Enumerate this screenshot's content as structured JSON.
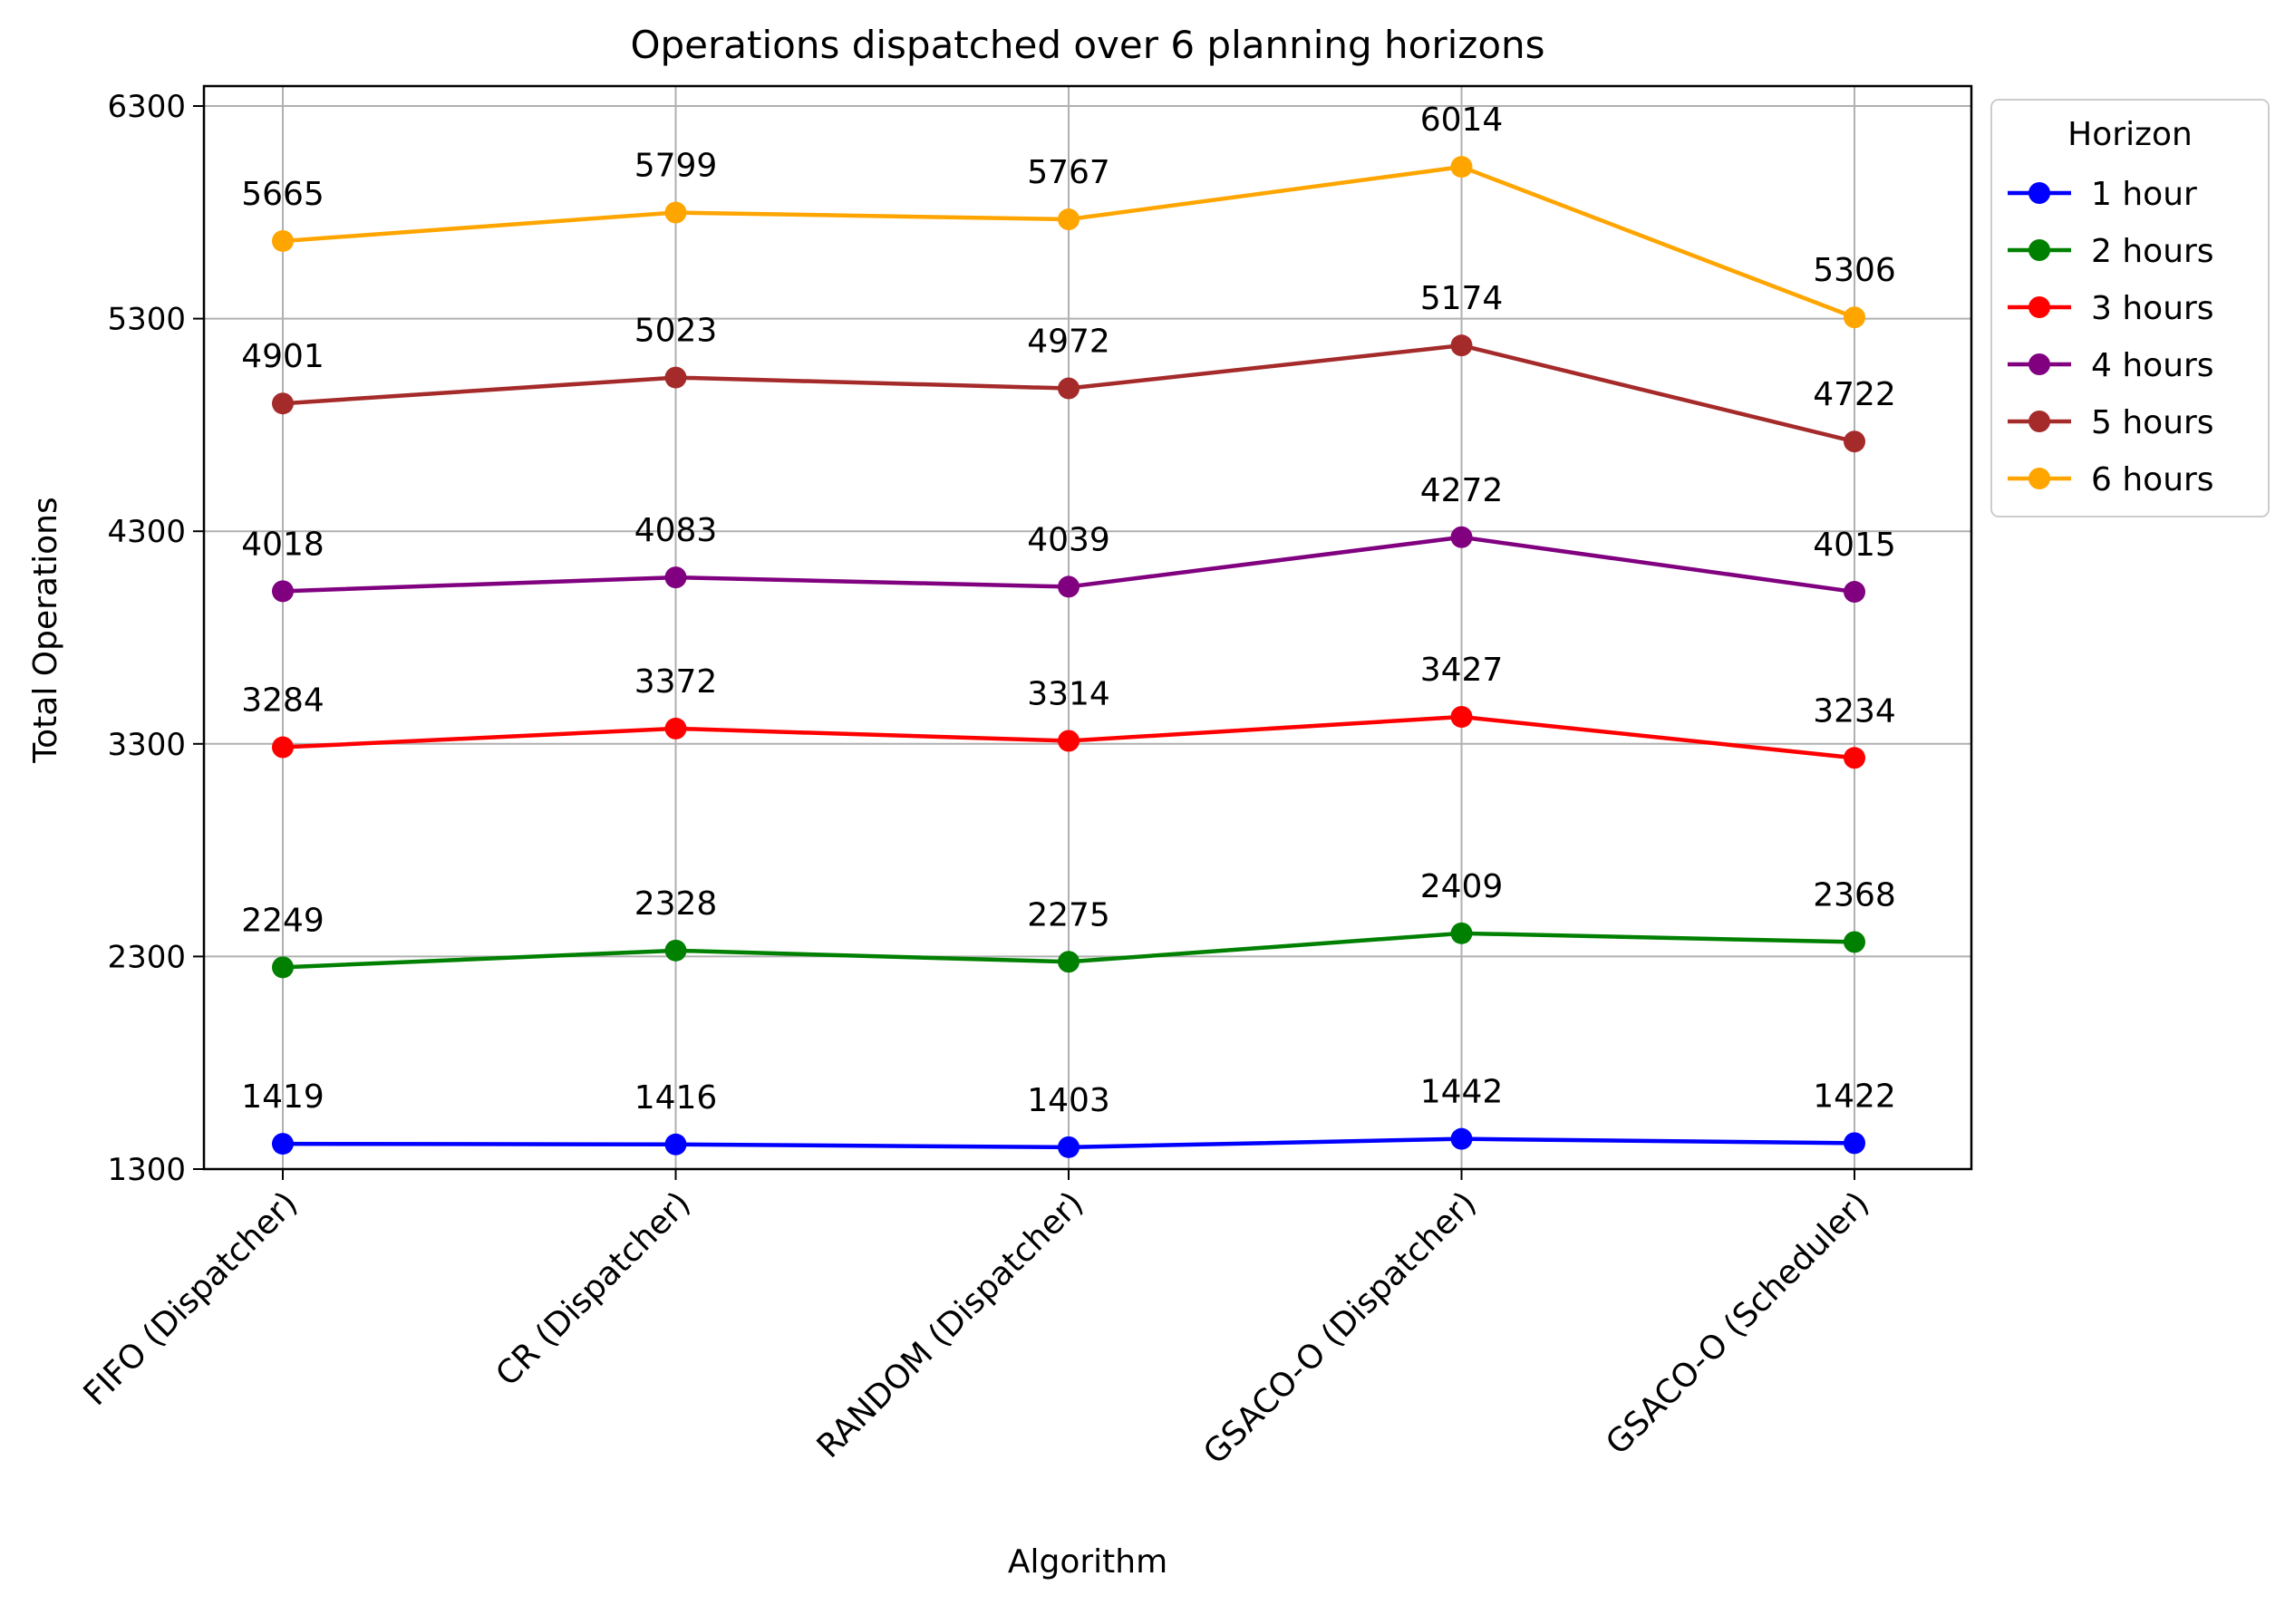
{
  "chart_data": {
    "type": "line",
    "title": "Operations dispatched over 6 planning horizons",
    "xlabel": "Algorithm",
    "ylabel": "Total Operations",
    "categories": [
      "FIFO (Dispatcher)",
      "CR (Dispatcher)",
      "RANDOM (Dispatcher)",
      "GSACO-O (Dispatcher)",
      "GSACO-O (Scheduler)"
    ],
    "yticks": [
      1300,
      2300,
      3300,
      4300,
      5300,
      6300
    ],
    "ylim": [
      1300,
      6380
    ],
    "grid": true,
    "legend": {
      "title": "Horizon",
      "placement": "outside-top-right"
    },
    "series": [
      {
        "name": "1 hour",
        "color": "#0000ff",
        "values": [
          1419,
          1416,
          1403,
          1442,
          1422
        ]
      },
      {
        "name": "2 hours",
        "color": "#008000",
        "values": [
          2249,
          2328,
          2275,
          2409,
          2368
        ]
      },
      {
        "name": "3 hours",
        "color": "#ff0000",
        "values": [
          3284,
          3372,
          3314,
          3427,
          3234
        ]
      },
      {
        "name": "4 hours",
        "color": "#800080",
        "values": [
          4018,
          4083,
          4039,
          4272,
          4015
        ]
      },
      {
        "name": "5 hours",
        "color": "#a52a2a",
        "values": [
          4901,
          5023,
          4972,
          5174,
          4722
        ]
      },
      {
        "name": "6 hours",
        "color": "#ffa500",
        "values": [
          5665,
          5799,
          5767,
          6014,
          5306
        ]
      }
    ]
  }
}
